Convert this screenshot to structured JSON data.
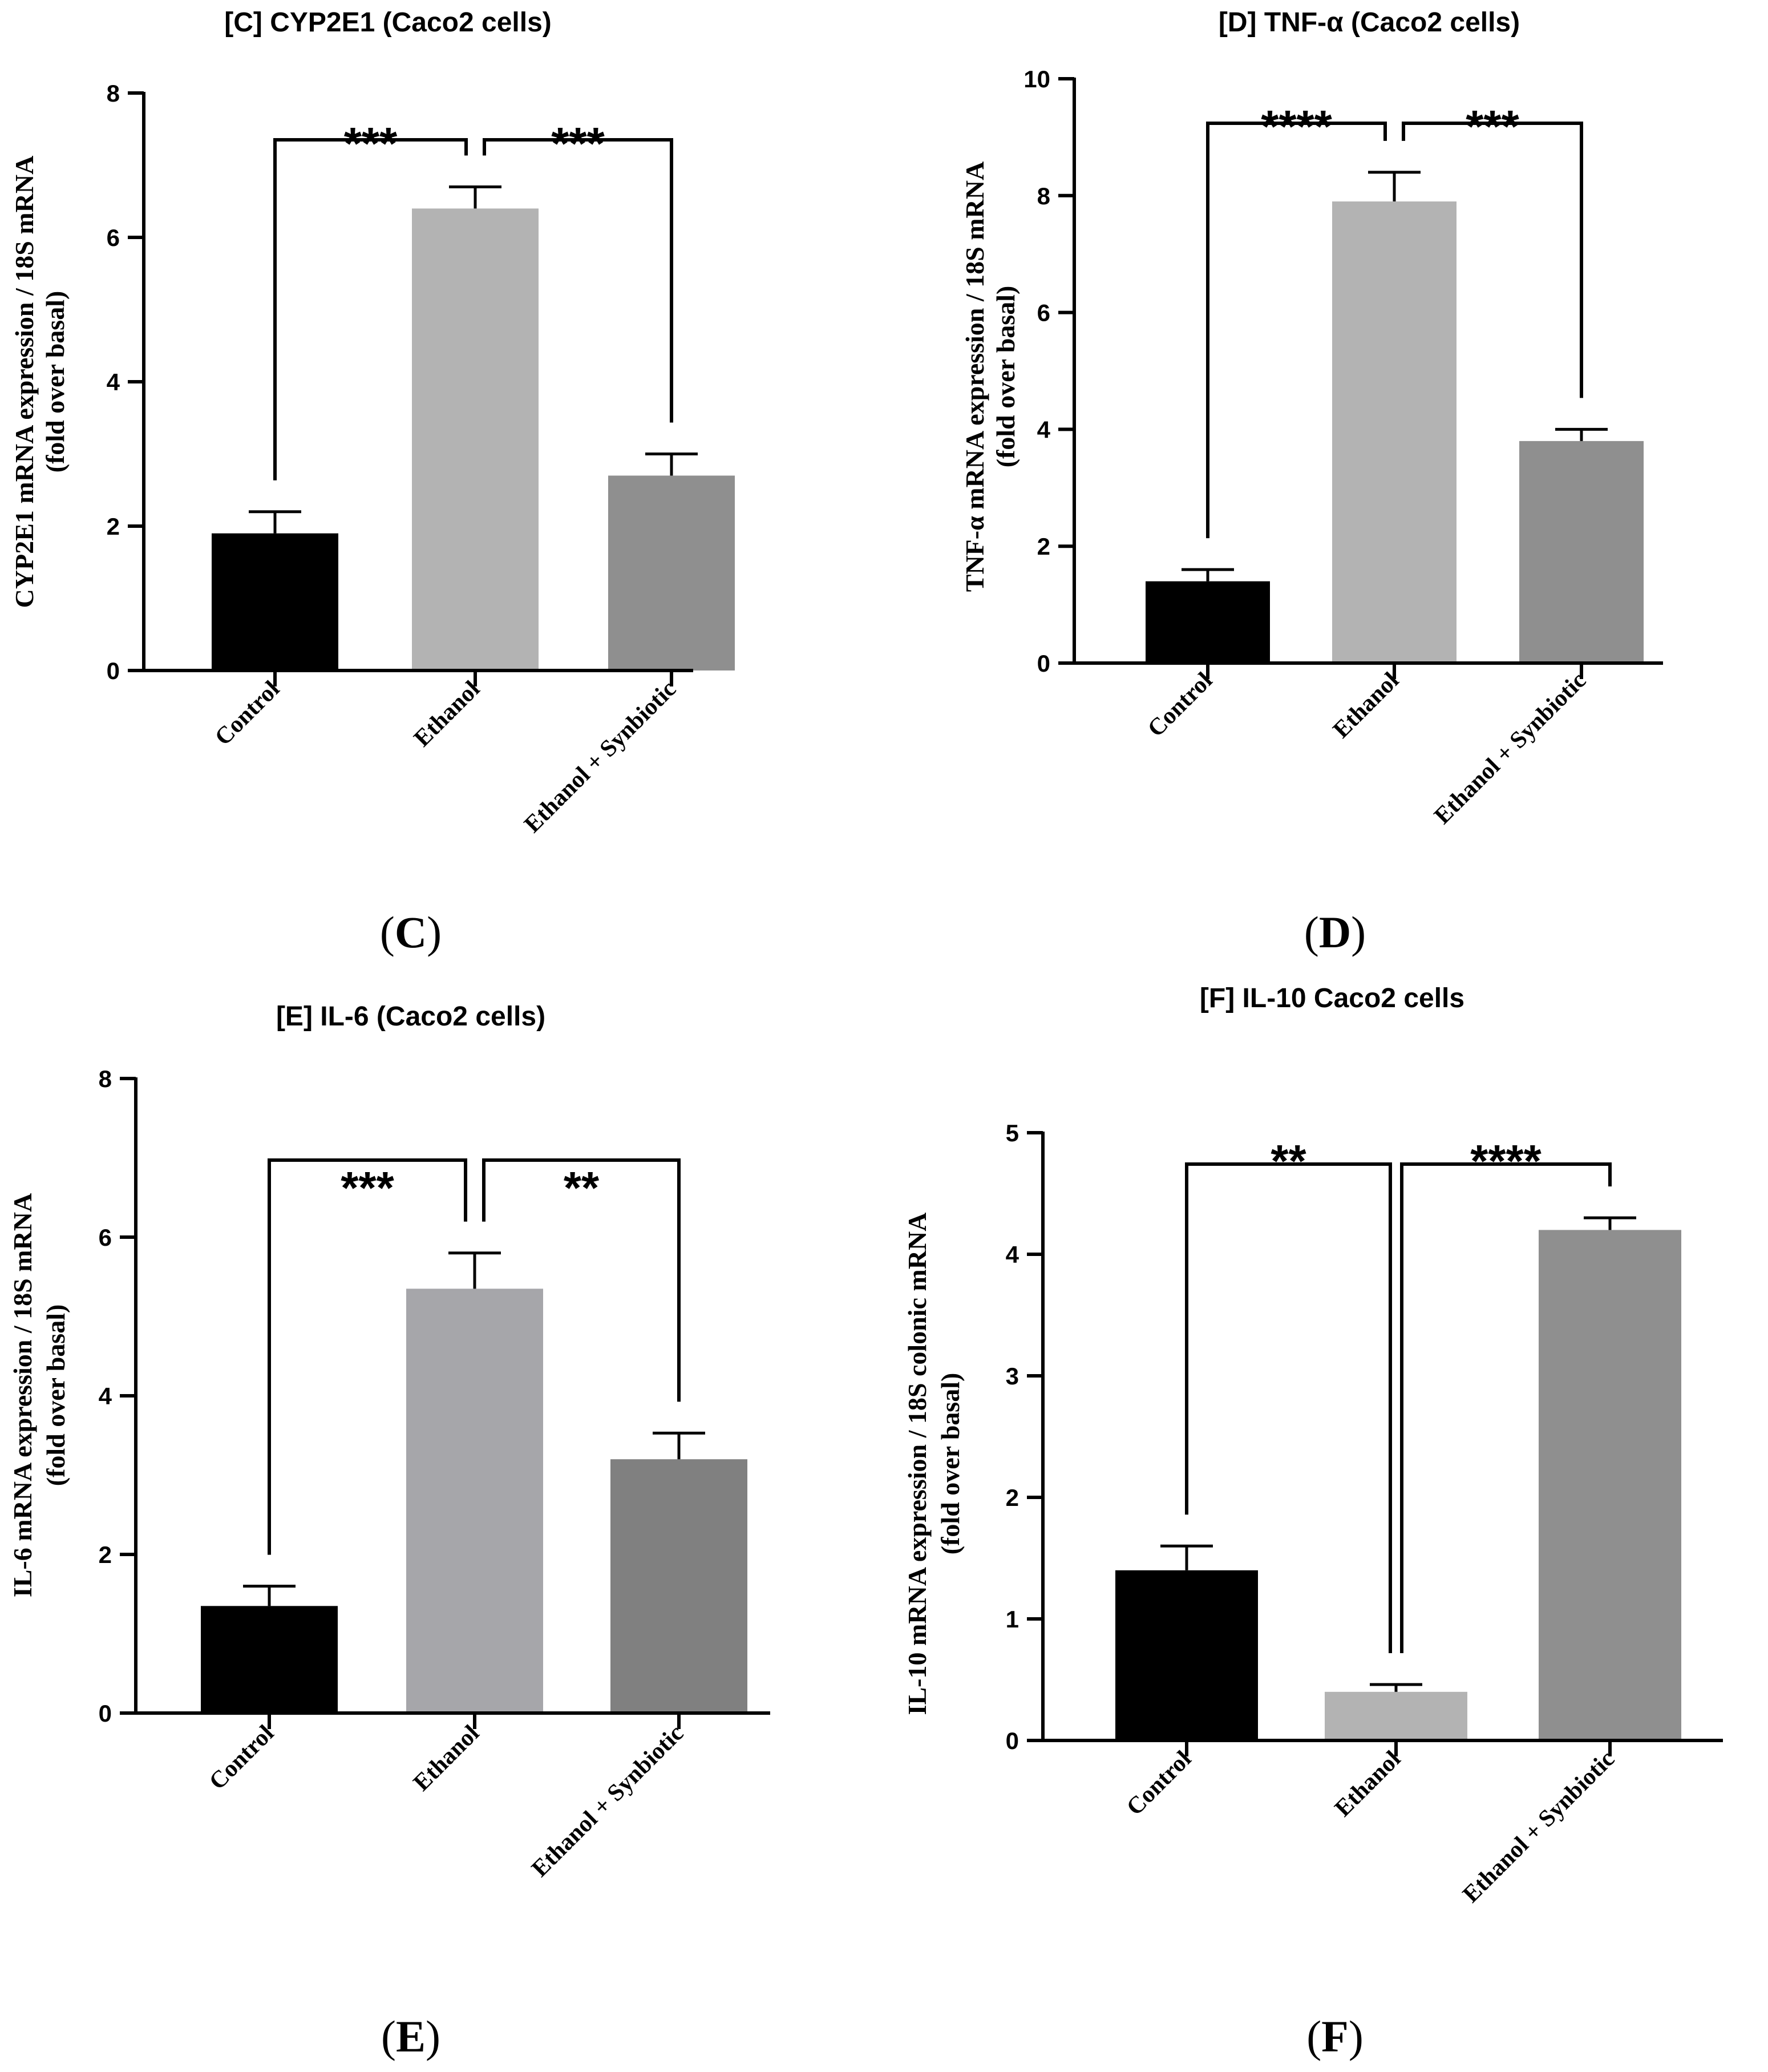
{
  "chart_data": [
    {
      "type": "bar",
      "title": "[C] CYP2E1 (Caco2 cells)",
      "panel_label": "C",
      "ylabel_lines": [
        "CYP2E1 mRNA expression / 18S mRNA",
        "(fold over basal)"
      ],
      "categories": [
        "Control",
        "Ethanol",
        "Ethanol + Synbiotic"
      ],
      "values": [
        1.9,
        6.4,
        2.7
      ],
      "errors": [
        0.3,
        0.3,
        0.3
      ],
      "colors": [
        "#000000",
        "#b3b3b3",
        "#8f8f8f"
      ],
      "ylim": [
        0,
        8
      ],
      "yticks": [
        0,
        2,
        4,
        6,
        8
      ],
      "yticklabels": [
        "0",
        "2",
        "4",
        "6",
        "8"
      ],
      "comparisons": [
        {
          "from": 0,
          "to": 1,
          "label": "***"
        },
        {
          "from": 1,
          "to": 2,
          "label": "***"
        }
      ]
    },
    {
      "type": "bar",
      "title": "[D] TNF-α (Caco2 cells)",
      "panel_label": "D",
      "ylabel_lines": [
        "TNF-α mRNA expression / 18S mRNA",
        "(fold over basal)"
      ],
      "categories": [
        "Control",
        "Ethanol",
        "Ethanol + Synbiotic"
      ],
      "values": [
        1.4,
        7.9,
        3.8
      ],
      "errors": [
        0.2,
        0.5,
        0.2
      ],
      "colors": [
        "#000000",
        "#b3b3b3",
        "#8f8f8f"
      ],
      "ylim": [
        0,
        10
      ],
      "yticks": [
        0,
        2,
        4,
        6,
        8,
        10
      ],
      "yticklabels": [
        "0",
        "2",
        "4",
        "6",
        "8",
        "10"
      ],
      "comparisons": [
        {
          "from": 0,
          "to": 1,
          "label": "****"
        },
        {
          "from": 1,
          "to": 2,
          "label": "***"
        }
      ]
    },
    {
      "type": "bar",
      "title": "[E] IL-6 (Caco2 cells)",
      "panel_label": "E",
      "ylabel_lines": [
        "IL-6 mRNA expression / 18S mRNA",
        "(fold over basal)"
      ],
      "categories": [
        "Control",
        "Ethanol",
        "Ethanol + Synbiotic"
      ],
      "values": [
        1.35,
        5.35,
        3.2
      ],
      "errors": [
        0.25,
        0.45,
        0.33
      ],
      "colors": [
        "#000000",
        "#a6a6aa",
        "#808080"
      ],
      "ylim": [
        0,
        8
      ],
      "yticks": [
        0,
        2,
        4,
        6,
        8
      ],
      "yticklabels": [
        "0",
        "2",
        "4",
        "6",
        "8"
      ],
      "comparisons": [
        {
          "from": 0,
          "to": 1,
          "label": "***"
        },
        {
          "from": 1,
          "to": 2,
          "label": "**"
        }
      ]
    },
    {
      "type": "bar",
      "title": "[F] IL-10 Caco2 cells",
      "panel_label": "F",
      "ylabel_lines": [
        "IL-10 mRNA expression / 18S colonic mRNA",
        "(fold over basal)"
      ],
      "categories": [
        "Control",
        "Ethanol",
        "Ethanol + Synbiotic"
      ],
      "values": [
        1.4,
        0.4,
        4.2
      ],
      "errors": [
        0.2,
        0.06,
        0.1
      ],
      "colors": [
        "#000000",
        "#b3b3b3",
        "#8f8f8f"
      ],
      "ylim": [
        0,
        5
      ],
      "yticks": [
        0,
        1,
        2,
        3,
        4,
        5
      ],
      "yticklabels": [
        "0",
        "1",
        "2",
        "3",
        "4",
        "5"
      ],
      "comparisons": [
        {
          "from": 1,
          "to": 0,
          "label": "**"
        },
        {
          "from": 1,
          "to": 2,
          "label": "****"
        }
      ]
    }
  ]
}
